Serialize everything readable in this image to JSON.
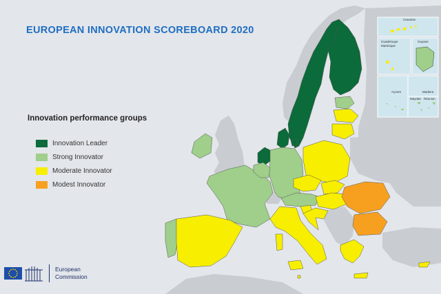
{
  "title": "EUROPEAN INNOVATION SCOREBOARD 2020",
  "legend": {
    "title": "Innovation performance groups",
    "items": [
      {
        "label": "Innovation Leader",
        "color": "#0b6b3a"
      },
      {
        "label": "Strong Innovator",
        "color": "#9fcf8b"
      },
      {
        "label": "Moderate Innovator",
        "color": "#f7ee00"
      },
      {
        "label": "Modest Innovator",
        "color": "#f7a020"
      }
    ]
  },
  "countries": [
    {
      "name": "Sweden",
      "group": "Innovation Leader"
    },
    {
      "name": "Finland",
      "group": "Innovation Leader"
    },
    {
      "name": "Denmark",
      "group": "Innovation Leader"
    },
    {
      "name": "Netherlands",
      "group": "Innovation Leader"
    },
    {
      "name": "Luxembourg",
      "group": "Innovation Leader"
    },
    {
      "name": "Ireland",
      "group": "Strong Innovator"
    },
    {
      "name": "France",
      "group": "Strong Innovator"
    },
    {
      "name": "Germany",
      "group": "Strong Innovator"
    },
    {
      "name": "Belgium",
      "group": "Strong Innovator"
    },
    {
      "name": "Austria",
      "group": "Strong Innovator"
    },
    {
      "name": "Estonia",
      "group": "Strong Innovator"
    },
    {
      "name": "Portugal",
      "group": "Strong Innovator"
    },
    {
      "name": "Spain",
      "group": "Moderate Innovator"
    },
    {
      "name": "Italy",
      "group": "Moderate Innovator"
    },
    {
      "name": "Poland",
      "group": "Moderate Innovator"
    },
    {
      "name": "Czechia",
      "group": "Moderate Innovator"
    },
    {
      "name": "Slovakia",
      "group": "Moderate Innovator"
    },
    {
      "name": "Hungary",
      "group": "Moderate Innovator"
    },
    {
      "name": "Slovenia",
      "group": "Moderate Innovator"
    },
    {
      "name": "Croatia",
      "group": "Moderate Innovator"
    },
    {
      "name": "Greece",
      "group": "Moderate Innovator"
    },
    {
      "name": "Cyprus",
      "group": "Moderate Innovator"
    },
    {
      "name": "Malta",
      "group": "Moderate Innovator"
    },
    {
      "name": "Latvia",
      "group": "Moderate Innovator"
    },
    {
      "name": "Lithuania",
      "group": "Moderate Innovator"
    },
    {
      "name": "Romania",
      "group": "Modest Innovator"
    },
    {
      "name": "Bulgaria",
      "group": "Modest Innovator"
    }
  ],
  "insets": {
    "canarias": "Canarias",
    "guadeloupe": "Guadeloupe",
    "martinique": "Martinique",
    "guyane": "Guyane",
    "mayotte": "Mayotte",
    "reunion": "Réunion",
    "acores": "Açores",
    "madeira": "Madeira"
  },
  "logo": {
    "line1": "European",
    "line2": "Commission"
  }
}
